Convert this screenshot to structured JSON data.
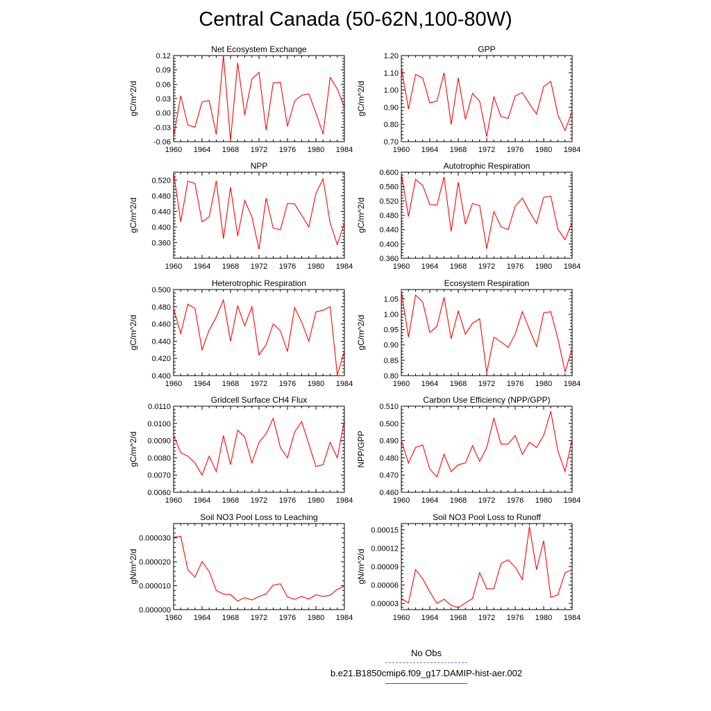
{
  "title": "Central Canada (50-62N,100-80W)",
  "legend": {
    "items": [
      {
        "label": "No Obs",
        "color": "#7070e0",
        "dash": "dashed"
      },
      {
        "label": "b.e21.B1850cmip6.f09_g17.DAMIP-hist-aer.002",
        "color": "#ff0000",
        "dash": "solid"
      }
    ]
  },
  "chart_data": [
    {
      "type": "line",
      "title": "Net Ecosystem Exchange",
      "xlabel": "",
      "ylabel": "gC/m^2/d",
      "xlim": [
        1960,
        1984
      ],
      "ylim": [
        -0.06,
        0.12
      ],
      "xticks": [
        1960,
        1964,
        1968,
        1972,
        1976,
        1980,
        1984
      ],
      "yticks": [
        -0.06,
        -0.03,
        0.0,
        0.03,
        0.06,
        0.09,
        0.12
      ],
      "ydecimals": 2,
      "x": [
        1960,
        1961,
        1962,
        1963,
        1964,
        1965,
        1966,
        1967,
        1968,
        1969,
        1970,
        1971,
        1972,
        1973,
        1974,
        1975,
        1976,
        1977,
        1978,
        1979,
        1980,
        1981,
        1982,
        1983,
        1984
      ],
      "series": [
        {
          "color": "#ff0000",
          "values": [
            -0.05,
            0.036,
            -0.025,
            -0.03,
            0.023,
            0.026,
            -0.045,
            0.12,
            -0.058,
            0.105,
            -0.004,
            0.071,
            0.085,
            -0.036,
            0.063,
            0.064,
            -0.028,
            0.025,
            0.037,
            0.04,
            0.0,
            -0.044,
            0.074,
            0.05,
            0.012
          ]
        }
      ]
    },
    {
      "type": "line",
      "title": "GPP",
      "xlabel": "",
      "ylabel": "gC/m^2/d",
      "xlim": [
        1960,
        1984
      ],
      "ylim": [
        0.7,
        1.2
      ],
      "xticks": [
        1960,
        1964,
        1968,
        1972,
        1976,
        1980,
        1984
      ],
      "yticks": [
        0.7,
        0.8,
        0.9,
        1.0,
        1.1,
        1.2
      ],
      "ydecimals": 2,
      "x": [
        1960,
        1961,
        1962,
        1963,
        1964,
        1965,
        1966,
        1967,
        1968,
        1969,
        1970,
        1971,
        1972,
        1973,
        1974,
        1975,
        1976,
        1977,
        1978,
        1979,
        1980,
        1981,
        1982,
        1983,
        1984
      ],
      "series": [
        {
          "color": "#ff0000",
          "values": [
            1.13,
            0.89,
            1.09,
            1.07,
            0.925,
            0.935,
            1.1,
            0.8,
            1.07,
            0.83,
            0.98,
            0.935,
            0.73,
            0.96,
            0.845,
            0.835,
            0.965,
            0.985,
            0.92,
            0.86,
            1.02,
            1.05,
            0.855,
            0.765,
            0.875
          ]
        }
      ]
    },
    {
      "type": "line",
      "title": "NPP",
      "xlabel": "",
      "ylabel": "gC/m^2/d",
      "xlim": [
        1960,
        1984
      ],
      "ylim": [
        0.32,
        0.54
      ],
      "xticks": [
        1960,
        1964,
        1968,
        1972,
        1976,
        1980,
        1984
      ],
      "yticks": [
        0.36,
        0.4,
        0.44,
        0.48,
        0.52
      ],
      "ydecimals": 3,
      "x": [
        1960,
        1961,
        1962,
        1963,
        1964,
        1965,
        1966,
        1967,
        1968,
        1969,
        1970,
        1971,
        1972,
        1973,
        1974,
        1975,
        1976,
        1977,
        1978,
        1979,
        1980,
        1981,
        1982,
        1983,
        1984
      ],
      "series": [
        {
          "color": "#ff0000",
          "values": [
            0.54,
            0.413,
            0.517,
            0.511,
            0.413,
            0.426,
            0.518,
            0.37,
            0.502,
            0.377,
            0.468,
            0.426,
            0.343,
            0.474,
            0.397,
            0.393,
            0.46,
            0.459,
            0.43,
            0.4,
            0.486,
            0.523,
            0.41,
            0.355,
            0.41
          ]
        }
      ]
    },
    {
      "type": "line",
      "title": "Autotrophic Respiration",
      "xlabel": "",
      "ylabel": "gC/m^2/d",
      "xlim": [
        1960,
        1984
      ],
      "ylim": [
        0.36,
        0.6
      ],
      "xticks": [
        1960,
        1964,
        1968,
        1972,
        1976,
        1980,
        1984
      ],
      "yticks": [
        0.36,
        0.4,
        0.44,
        0.48,
        0.52,
        0.56,
        0.6
      ],
      "ydecimals": 3,
      "x": [
        1960,
        1961,
        1962,
        1963,
        1964,
        1965,
        1966,
        1967,
        1968,
        1969,
        1970,
        1971,
        1972,
        1973,
        1974,
        1975,
        1976,
        1977,
        1978,
        1979,
        1980,
        1981,
        1982,
        1983,
        1984
      ],
      "series": [
        {
          "color": "#ff0000",
          "values": [
            0.595,
            0.477,
            0.58,
            0.563,
            0.51,
            0.508,
            0.587,
            0.435,
            0.572,
            0.455,
            0.513,
            0.507,
            0.387,
            0.49,
            0.448,
            0.44,
            0.505,
            0.528,
            0.49,
            0.457,
            0.53,
            0.533,
            0.441,
            0.412,
            0.46
          ]
        }
      ]
    },
    {
      "type": "line",
      "title": "Heterotrophic Respiration",
      "xlabel": "",
      "ylabel": "gC/m^2/d",
      "xlim": [
        1960,
        1984
      ],
      "ylim": [
        0.4,
        0.5
      ],
      "xticks": [
        1960,
        1964,
        1968,
        1972,
        1976,
        1980,
        1984
      ],
      "yticks": [
        0.4,
        0.42,
        0.44,
        0.46,
        0.48,
        0.5
      ],
      "ydecimals": 3,
      "x": [
        1960,
        1961,
        1962,
        1963,
        1964,
        1965,
        1966,
        1967,
        1968,
        1969,
        1970,
        1971,
        1972,
        1973,
        1974,
        1975,
        1976,
        1977,
        1978,
        1979,
        1980,
        1981,
        1982,
        1983,
        1984
      ],
      "series": [
        {
          "color": "#ff0000",
          "values": [
            0.478,
            0.449,
            0.483,
            0.478,
            0.43,
            0.453,
            0.468,
            0.488,
            0.44,
            0.481,
            0.458,
            0.48,
            0.424,
            0.436,
            0.46,
            0.452,
            0.428,
            0.479,
            0.462,
            0.44,
            0.474,
            0.476,
            0.48,
            0.401,
            0.428
          ]
        }
      ]
    },
    {
      "type": "line",
      "title": "Ecosystem Respiration",
      "xlabel": "",
      "ylabel": "gC/m^2/d",
      "xlim": [
        1960,
        1984
      ],
      "ylim": [
        0.8,
        1.08
      ],
      "xticks": [
        1960,
        1964,
        1968,
        1972,
        1976,
        1980,
        1984
      ],
      "yticks": [
        0.8,
        0.85,
        0.9,
        0.95,
        1.0,
        1.05
      ],
      "ydecimals": 2,
      "x": [
        1960,
        1961,
        1962,
        1963,
        1964,
        1965,
        1966,
        1967,
        1968,
        1969,
        1970,
        1971,
        1972,
        1973,
        1974,
        1975,
        1976,
        1977,
        1978,
        1979,
        1980,
        1981,
        1982,
        1983,
        1984
      ],
      "series": [
        {
          "color": "#ff0000",
          "values": [
            1.075,
            0.925,
            1.062,
            1.04,
            0.94,
            0.96,
            1.055,
            0.92,
            1.01,
            0.935,
            0.97,
            0.985,
            0.81,
            0.925,
            0.91,
            0.892,
            0.935,
            1.008,
            0.95,
            0.895,
            1.004,
            1.008,
            0.92,
            0.812,
            0.887
          ]
        }
      ]
    },
    {
      "type": "line",
      "title": "Gridcell Surface CH4 Flux",
      "xlabel": "",
      "ylabel": "gC/m^2/d",
      "xlim": [
        1960,
        1984
      ],
      "ylim": [
        0.006,
        0.011
      ],
      "xticks": [
        1960,
        1964,
        1968,
        1972,
        1976,
        1980,
        1984
      ],
      "yticks": [
        0.006,
        0.007,
        0.008,
        0.009,
        0.01,
        0.011
      ],
      "ydecimals": 4,
      "x": [
        1960,
        1961,
        1962,
        1963,
        1964,
        1965,
        1966,
        1967,
        1968,
        1969,
        1970,
        1971,
        1972,
        1973,
        1974,
        1975,
        1976,
        1977,
        1978,
        1979,
        1980,
        1981,
        1982,
        1983,
        1984
      ],
      "series": [
        {
          "color": "#ff0000",
          "values": [
            0.0093,
            0.0083,
            0.0081,
            0.0077,
            0.007,
            0.0081,
            0.0072,
            0.0093,
            0.0076,
            0.0096,
            0.0092,
            0.0077,
            0.0089,
            0.0094,
            0.0103,
            0.0086,
            0.008,
            0.0095,
            0.0101,
            0.0088,
            0.0075,
            0.0076,
            0.0089,
            0.008,
            0.0102
          ]
        }
      ]
    },
    {
      "type": "line",
      "title": "Carbon Use Efficiency (NPP/GPP)",
      "xlabel": "",
      "ylabel": "NPP/GPP",
      "xlim": [
        1960,
        1984
      ],
      "ylim": [
        0.46,
        0.51
      ],
      "xticks": [
        1960,
        1964,
        1968,
        1972,
        1976,
        1980,
        1984
      ],
      "yticks": [
        0.46,
        0.47,
        0.48,
        0.49,
        0.5,
        0.51
      ],
      "ydecimals": 3,
      "x": [
        1960,
        1961,
        1962,
        1963,
        1964,
        1965,
        1966,
        1967,
        1968,
        1969,
        1970,
        1971,
        1972,
        1973,
        1974,
        1975,
        1976,
        1977,
        1978,
        1979,
        1980,
        1981,
        1982,
        1983,
        1984
      ],
      "series": [
        {
          "color": "#ff0000",
          "values": [
            0.49,
            0.477,
            0.486,
            0.4875,
            0.4735,
            0.469,
            0.482,
            0.472,
            0.476,
            0.477,
            0.487,
            0.478,
            0.486,
            0.503,
            0.488,
            0.488,
            0.493,
            0.482,
            0.489,
            0.486,
            0.493,
            0.507,
            0.484,
            0.472,
            0.491
          ]
        }
      ]
    },
    {
      "type": "line",
      "title": "Soil NO3 Pool Loss to Leaching",
      "xlabel": "",
      "ylabel": "gN/m^2/d",
      "xlim": [
        1960,
        1984
      ],
      "ylim": [
        0.0,
        3.6e-05
      ],
      "xticks": [
        1960,
        1964,
        1968,
        1972,
        1976,
        1980,
        1984
      ],
      "yticks": [
        0.0,
        1e-05,
        2e-05,
        3e-05
      ],
      "ydecimals": 6,
      "x": [
        1960,
        1961,
        1962,
        1963,
        1964,
        1965,
        1966,
        1967,
        1968,
        1969,
        1970,
        1971,
        1972,
        1973,
        1974,
        1975,
        1976,
        1977,
        1978,
        1979,
        1980,
        1981,
        1982,
        1983,
        1984
      ],
      "series": [
        {
          "color": "#ff0000",
          "values": [
            3.03e-05,
            3.06e-05,
            1.67e-05,
            1.36e-05,
            2.01e-05,
            1.59e-05,
            8e-06,
            6.5e-06,
            6.3e-06,
            3.6e-06,
            5e-06,
            4e-06,
            5.5e-06,
            6.6e-06,
            1.03e-05,
            1.08e-05,
            5.3e-06,
            4.3e-06,
            5.5e-06,
            4.4e-06,
            6.2e-06,
            5.5e-06,
            6e-06,
            8.5e-06,
            9.8e-06
          ]
        }
      ]
    },
    {
      "type": "line",
      "title": "Soil NO3 Pool Loss to Runoff",
      "xlabel": "",
      "ylabel": "gN/m^2/d",
      "xlim": [
        1960,
        1984
      ],
      "ylim": [
        2e-05,
        0.00016
      ],
      "xticks": [
        1960,
        1964,
        1968,
        1972,
        1976,
        1980,
        1984
      ],
      "yticks": [
        3e-05,
        6e-05,
        9e-05,
        0.00012,
        0.00015
      ],
      "ydecimals": 5,
      "x": [
        1960,
        1961,
        1962,
        1963,
        1964,
        1965,
        1966,
        1967,
        1968,
        1969,
        1970,
        1971,
        1972,
        1973,
        1974,
        1975,
        1976,
        1977,
        1978,
        1979,
        1980,
        1981,
        1982,
        1983,
        1984
      ],
      "series": [
        {
          "color": "#ff0000",
          "values": [
            3.8e-05,
            3.1e-05,
            8.5e-05,
            7e-05,
            4.9e-05,
            3e-05,
            3.7e-05,
            2.7e-05,
            2.3e-05,
            3.1e-05,
            3.8e-05,
            8e-05,
            5.4e-05,
            5.4e-05,
            9.5e-05,
            0.000101,
            8.9e-05,
            6.9e-05,
            0.000155,
            8.5e-05,
            0.000132,
            4e-05,
            4.4e-05,
            8e-05,
            8.5e-05
          ]
        }
      ]
    }
  ]
}
